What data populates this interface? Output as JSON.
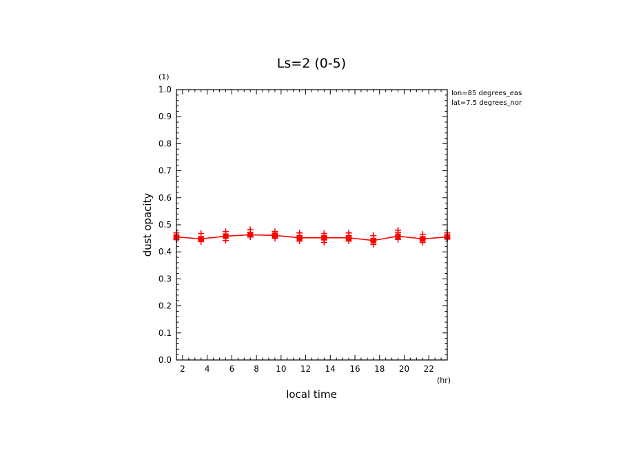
{
  "chart_data": {
    "type": "line",
    "title": "Ls=2 (0-5)",
    "xlabel": "local time",
    "ylabel": "dust opacity",
    "x_unit": "(hr)",
    "y_unit": "(1)",
    "xlim": [
      1.5,
      23.5
    ],
    "ylim": [
      0.0,
      1.0
    ],
    "x_ticks": [
      2,
      4,
      6,
      8,
      10,
      12,
      14,
      16,
      18,
      20,
      22
    ],
    "y_ticks": [
      0.0,
      0.1,
      0.2,
      0.3,
      0.4,
      0.5,
      0.6,
      0.7,
      0.8,
      0.9,
      1.0
    ],
    "y_tick_labels": [
      "0.0",
      "0.1",
      "0.2",
      "0.3",
      "0.4",
      "0.5",
      "0.6",
      "0.7",
      "0.8",
      "0.9",
      "1.0"
    ],
    "annotations": [
      "lon=85 degrees_eas",
      "lat=7.5 degrees_nor"
    ],
    "legend": "none",
    "grid": false,
    "line_color": "#ff0000",
    "series": [
      {
        "x": [
          1.5,
          3.5,
          5.5,
          7.5,
          9.5,
          11.5,
          13.5,
          15.5,
          17.5,
          19.5,
          21.5,
          23.5
        ],
        "values": [
          0.455,
          0.448,
          0.458,
          0.463,
          0.461,
          0.452,
          0.452,
          0.452,
          0.442,
          0.458,
          0.448,
          0.455
        ]
      }
    ],
    "samples": [
      [
        0.47,
        0.46,
        0.452,
        0.445
      ],
      [
        0.468,
        0.455,
        0.445,
        0.438
      ],
      [
        0.475,
        0.466,
        0.455,
        0.442
      ],
      [
        0.482,
        0.472,
        0.46,
        0.455
      ],
      [
        0.475,
        0.466,
        0.458,
        0.45
      ],
      [
        0.47,
        0.46,
        0.448,
        0.44
      ],
      [
        0.468,
        0.458,
        0.445,
        0.435
      ],
      [
        0.47,
        0.46,
        0.448,
        0.44
      ],
      [
        0.46,
        0.448,
        0.438,
        0.428
      ],
      [
        0.48,
        0.472,
        0.458,
        0.446
      ],
      [
        0.465,
        0.455,
        0.445,
        0.435
      ],
      [
        0.47,
        0.462,
        0.452,
        0.448
      ]
    ]
  }
}
